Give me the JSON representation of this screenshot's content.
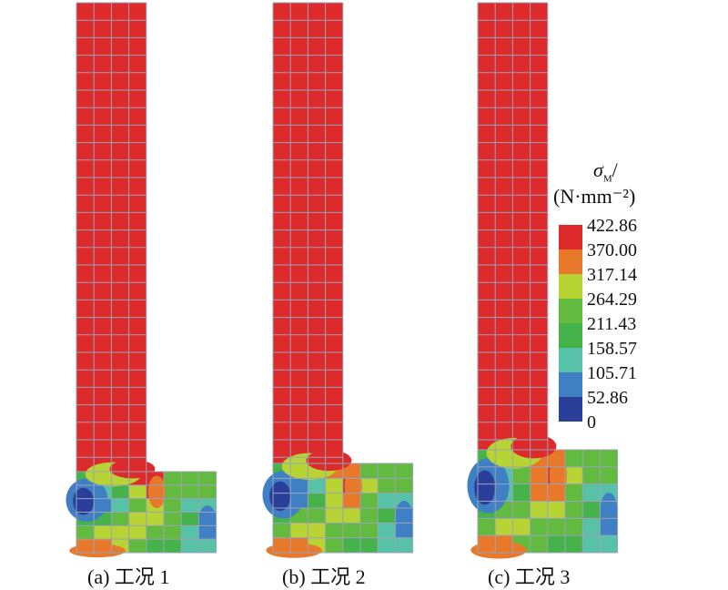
{
  "figure": {
    "captions": [
      "(a) 工况 1",
      "(b) 工况 2",
      "(c) 工况 3"
    ],
    "palette": [
      "#2a3f9a",
      "#3f7fc4",
      "#58c2a8",
      "#45b24a",
      "#62bb3f",
      "#b7d434",
      "#e8792a",
      "#dd2b2b"
    ],
    "grid_color": "#9aa2ba",
    "legend": {
      "title_symbol": "σ",
      "title_subscript": "M",
      "title_slash": "/",
      "unit": "(N·mm⁻²)",
      "levels": [
        "422.86",
        "370.00",
        "317.14",
        "264.29",
        "211.43",
        "158.57",
        "105.71",
        "52.86",
        "0"
      ],
      "band_colors": [
        "#dd2b2b",
        "#e8792a",
        "#b7d434",
        "#62bb3f",
        "#45b24a",
        "#58c2a8",
        "#3f7fc4",
        "#2a3f9a"
      ]
    }
  }
}
